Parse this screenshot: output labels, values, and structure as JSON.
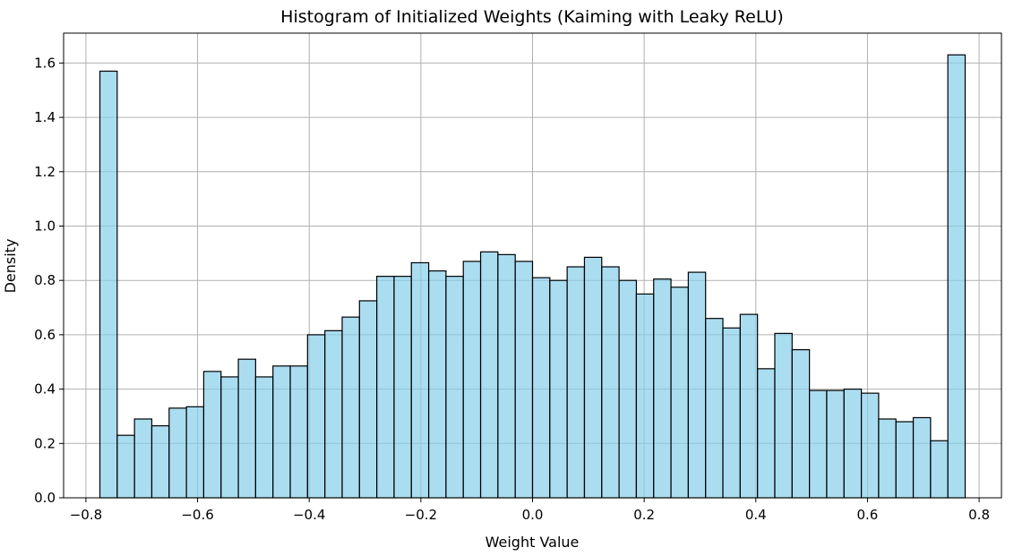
{
  "chart_data": {
    "type": "bar",
    "subtype": "histogram",
    "title": "Histogram of Initialized Weights (Kaiming with Leaky ReLU)",
    "xlabel": "Weight Value",
    "ylabel": "Density",
    "xlim": [
      -0.84,
      0.84
    ],
    "ylim": [
      0,
      1.71
    ],
    "grid": true,
    "colors": {
      "bar_fill": "#87CEEB",
      "bar_edge": "#000000",
      "grid": "#b0b0b0"
    },
    "x_ticks": [
      {
        "value": -0.8,
        "label": "−0.8"
      },
      {
        "value": -0.6,
        "label": "−0.6"
      },
      {
        "value": -0.4,
        "label": "−0.4"
      },
      {
        "value": -0.2,
        "label": "−0.2"
      },
      {
        "value": 0.0,
        "label": "0.0"
      },
      {
        "value": 0.2,
        "label": "0.2"
      },
      {
        "value": 0.4,
        "label": "0.4"
      },
      {
        "value": 0.6,
        "label": "0.6"
      },
      {
        "value": 0.8,
        "label": "0.8"
      }
    ],
    "y_ticks": [
      {
        "value": 0.0,
        "label": "0.0"
      },
      {
        "value": 0.2,
        "label": "0.2"
      },
      {
        "value": 0.4,
        "label": "0.4"
      },
      {
        "value": 0.6,
        "label": "0.6"
      },
      {
        "value": 0.8,
        "label": "0.8"
      },
      {
        "value": 1.0,
        "label": "1.0"
      },
      {
        "value": 1.2,
        "label": "1.2"
      },
      {
        "value": 1.4,
        "label": "1.4"
      },
      {
        "value": 1.6,
        "label": "1.6"
      }
    ],
    "bin_range": [
      -0.775,
      0.775
    ],
    "values": [
      1.57,
      0.23,
      0.29,
      0.265,
      0.33,
      0.335,
      0.465,
      0.445,
      0.51,
      0.445,
      0.485,
      0.485,
      0.6,
      0.615,
      0.665,
      0.725,
      0.815,
      0.815,
      0.865,
      0.835,
      0.815,
      0.87,
      0.905,
      0.895,
      0.87,
      0.81,
      0.8,
      0.85,
      0.885,
      0.85,
      0.8,
      0.75,
      0.805,
      0.775,
      0.83,
      0.66,
      0.625,
      0.675,
      0.475,
      0.605,
      0.545,
      0.395,
      0.395,
      0.4,
      0.385,
      0.29,
      0.28,
      0.295,
      0.21,
      1.63
    ]
  }
}
